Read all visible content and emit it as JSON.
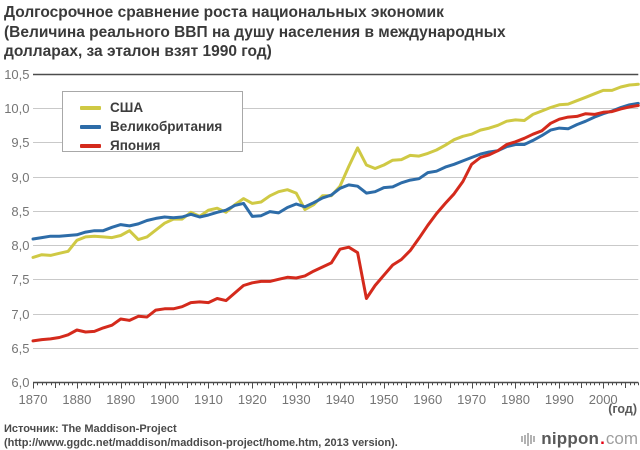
{
  "title_lines": [
    "Долгосрочное сравнение роста национальных экономик",
    "(Величина реального ВВП на душу населения в международных",
    "долларах, за эталон взят 1990 год)"
  ],
  "source_lines": [
    "Источник: The Maddison-Project",
    "(http://www.ggdc.net/maddison/maddison-project/home.htm, 2013 version)."
  ],
  "logo": {
    "main": "nippon",
    "dot": ".",
    "tld": "com"
  },
  "colors": {
    "grid": "#c9c9c9",
    "axis": "#4c4c4c",
    "tick_text": "#757575"
  },
  "chart_data": {
    "type": "line",
    "title": "",
    "xlabel": "(год)",
    "ylabel": "",
    "xlim": [
      1870,
      2008
    ],
    "ylim": [
      6.0,
      10.5
    ],
    "grid": true,
    "legend_position": "top-left",
    "x_tick_labels": [
      "1870",
      "1880",
      "1890",
      "1900",
      "1910",
      "1920",
      "1930",
      "1940",
      "1950",
      "1960",
      "1970",
      "1980",
      "1990",
      "2000"
    ],
    "y_ticks": [
      {
        "value": 6.0,
        "label": "6,0"
      },
      {
        "value": 6.5,
        "label": "6,5"
      },
      {
        "value": 7.0,
        "label": "7,0"
      },
      {
        "value": 7.5,
        "label": "7,5"
      },
      {
        "value": 8.0,
        "label": "8,0"
      },
      {
        "value": 8.5,
        "label": "8,5"
      },
      {
        "value": 9.0,
        "label": "9,0"
      },
      {
        "value": 9.5,
        "label": "9,5"
      },
      {
        "value": 10.0,
        "label": "10,0"
      },
      {
        "value": 10.5,
        "label": "10,5"
      }
    ],
    "years": [
      1870,
      1872,
      1874,
      1876,
      1878,
      1880,
      1882,
      1884,
      1886,
      1888,
      1890,
      1892,
      1894,
      1896,
      1898,
      1900,
      1902,
      1904,
      1906,
      1908,
      1910,
      1912,
      1914,
      1916,
      1918,
      1920,
      1922,
      1924,
      1926,
      1928,
      1930,
      1932,
      1934,
      1936,
      1938,
      1940,
      1942,
      1944,
      1946,
      1948,
      1950,
      1952,
      1954,
      1956,
      1958,
      1960,
      1962,
      1964,
      1966,
      1968,
      1970,
      1972,
      1974,
      1976,
      1978,
      1980,
      1982,
      1984,
      1986,
      1988,
      1990,
      1992,
      1994,
      1996,
      1998,
      2000,
      2002,
      2004,
      2006,
      2008
    ],
    "series": [
      {
        "id": "usa",
        "name": "США",
        "color": "#cfc944",
        "values": [
          7.82,
          7.86,
          7.85,
          7.88,
          7.91,
          8.07,
          8.12,
          8.13,
          8.12,
          8.11,
          8.14,
          8.21,
          8.08,
          8.12,
          8.22,
          8.32,
          8.38,
          8.38,
          8.48,
          8.42,
          8.51,
          8.54,
          8.48,
          8.59,
          8.68,
          8.61,
          8.63,
          8.72,
          8.78,
          8.81,
          8.76,
          8.52,
          8.59,
          8.72,
          8.72,
          8.86,
          9.15,
          9.42,
          9.17,
          9.12,
          9.17,
          9.24,
          9.25,
          9.31,
          9.3,
          9.34,
          9.39,
          9.46,
          9.54,
          9.59,
          9.62,
          9.68,
          9.71,
          9.75,
          9.81,
          9.83,
          9.82,
          9.91,
          9.96,
          10.01,
          10.05,
          10.06,
          10.11,
          10.16,
          10.21,
          10.26,
          10.26,
          10.31,
          10.34,
          10.35
        ]
      },
      {
        "id": "uk",
        "name": "Великобритания",
        "color": "#2d6ca8",
        "values": [
          8.09,
          8.11,
          8.13,
          8.13,
          8.14,
          8.15,
          8.19,
          8.21,
          8.21,
          8.26,
          8.3,
          8.28,
          8.31,
          8.36,
          8.39,
          8.41,
          8.4,
          8.41,
          8.45,
          8.41,
          8.44,
          8.48,
          8.51,
          8.58,
          8.61,
          8.42,
          8.43,
          8.49,
          8.47,
          8.55,
          8.6,
          8.56,
          8.62,
          8.69,
          8.73,
          8.83,
          8.88,
          8.86,
          8.76,
          8.78,
          8.84,
          8.85,
          8.91,
          8.95,
          8.97,
          9.06,
          9.08,
          9.14,
          9.18,
          9.23,
          9.28,
          9.33,
          9.36,
          9.38,
          9.44,
          9.47,
          9.47,
          9.53,
          9.6,
          9.68,
          9.71,
          9.7,
          9.76,
          9.81,
          9.87,
          9.92,
          9.96,
          10.01,
          10.05,
          10.07
        ]
      },
      {
        "id": "japan",
        "name": "Япония",
        "color": "#d42a1c",
        "values": [
          6.6,
          6.62,
          6.63,
          6.65,
          6.69,
          6.76,
          6.73,
          6.74,
          6.79,
          6.83,
          6.92,
          6.9,
          6.96,
          6.95,
          7.05,
          7.07,
          7.07,
          7.1,
          7.16,
          7.17,
          7.16,
          7.22,
          7.19,
          7.3,
          7.41,
          7.45,
          7.47,
          7.47,
          7.5,
          7.53,
          7.52,
          7.55,
          7.62,
          7.68,
          7.74,
          7.94,
          7.97,
          7.89,
          7.22,
          7.41,
          7.56,
          7.71,
          7.79,
          7.92,
          8.1,
          8.29,
          8.46,
          8.61,
          8.75,
          8.93,
          9.18,
          9.28,
          9.32,
          9.38,
          9.47,
          9.51,
          9.56,
          9.62,
          9.67,
          9.78,
          9.84,
          9.87,
          9.88,
          9.92,
          9.91,
          9.94,
          9.95,
          9.99,
          10.02,
          10.04
        ]
      }
    ]
  }
}
